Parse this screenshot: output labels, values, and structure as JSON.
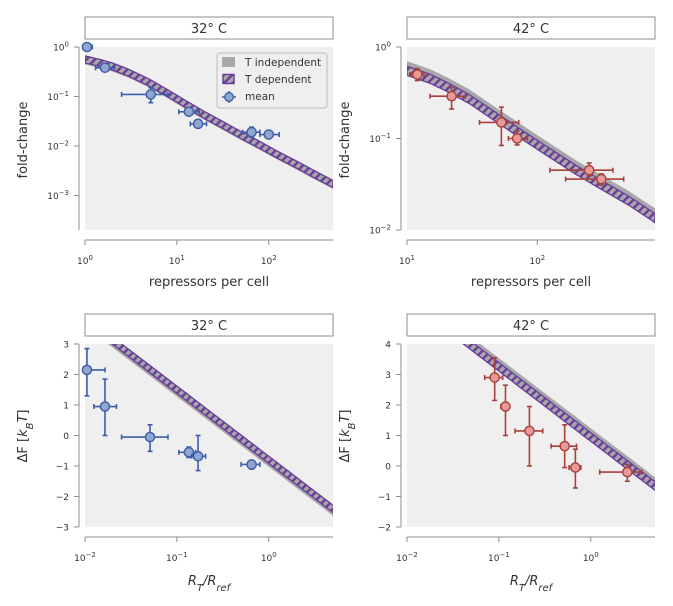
{
  "chart_data": [
    {
      "id": "fc32",
      "type": "scatter",
      "title": "32° C",
      "xlabel": "repressors per cell",
      "ylabel": "fold-change",
      "xscale": "log",
      "yscale": "log",
      "xlim": [
        1,
        500
      ],
      "ylim": [
        0.0002,
        1
      ],
      "xticks": [
        {
          "v": 1,
          "base": "10",
          "exp": "0"
        },
        {
          "v": 10,
          "base": "10",
          "exp": "1"
        },
        {
          "v": 100,
          "base": "10",
          "exp": "2"
        }
      ],
      "yticks": [
        {
          "v": 1,
          "base": "10",
          "exp": "0"
        },
        {
          "v": 0.1,
          "base": "10",
          "exp": "−1"
        },
        {
          "v": 0.01,
          "base": "10",
          "exp": "−2"
        },
        {
          "v": 0.001,
          "base": "10",
          "exp": "−3"
        }
      ],
      "grid": false,
      "legend": {
        "placement": "top-right",
        "entries": [
          "T independent",
          "T dependent",
          "mean"
        ]
      },
      "marker_color": "#8fa6d1",
      "marker_edge": "#3c5ea8",
      "band": {
        "name": "T independent / T dependent",
        "x": [
          1,
          1.5,
          2,
          3,
          5,
          8,
          12,
          20,
          30,
          50,
          80,
          120,
          200,
          300,
          500
        ],
        "y_center": [
          0.56,
          0.47,
          0.4,
          0.3,
          0.19,
          0.115,
          0.073,
          0.042,
          0.028,
          0.0165,
          0.0104,
          0.0069,
          0.0042,
          0.0028,
          0.0017
        ],
        "rel_half_width": 0.18
      },
      "series": [
        {
          "name": "mean",
          "points": [
            {
              "x": 1.05,
              "y": 1.0,
              "xerr": [
                0.95,
                1.2
              ],
              "yerr": [
                1.0,
                1.0
              ]
            },
            {
              "x": 1.65,
              "y": 0.38,
              "xerr": [
                1.3,
                2.1
              ],
              "yerr": [
                0.34,
                0.42
              ]
            },
            {
              "x": 5.2,
              "y": 0.11,
              "xerr": [
                2.5,
                8.0
              ],
              "yerr": [
                0.075,
                0.15
              ]
            },
            {
              "x": 13.5,
              "y": 0.049,
              "xerr": [
                10.5,
                17.5
              ],
              "yerr": [
                0.043,
                0.056
              ]
            },
            {
              "x": 17,
              "y": 0.028,
              "xerr": [
                14,
                21
              ],
              "yerr": [
                0.025,
                0.032
              ]
            },
            {
              "x": 65,
              "y": 0.019,
              "xerr": [
                52,
                80
              ],
              "yerr": [
                0.015,
                0.024
              ]
            },
            {
              "x": 100,
              "y": 0.017,
              "xerr": [
                80,
                130
              ],
              "yerr": [
                0.015,
                0.02
              ]
            }
          ]
        }
      ]
    },
    {
      "id": "fc42",
      "type": "scatter",
      "title": "42° C",
      "xlabel": "repressors per cell",
      "ylabel": "fold-change",
      "xscale": "log",
      "yscale": "log",
      "xlim": [
        10,
        800
      ],
      "ylim": [
        0.01,
        1
      ],
      "xticks": [
        {
          "v": 10,
          "base": "10",
          "exp": "1"
        },
        {
          "v": 100,
          "base": "10",
          "exp": "2"
        }
      ],
      "yticks": [
        {
          "v": 1,
          "base": "10",
          "exp": "0"
        },
        {
          "v": 0.1,
          "base": "10",
          "exp": "−1"
        },
        {
          "v": 0.01,
          "base": "10",
          "exp": "−2"
        }
      ],
      "grid": false,
      "marker_color": "#e89a98",
      "marker_edge": "#a8403a",
      "band": {
        "name": "T independent / T dependent",
        "x": [
          10,
          15,
          20,
          30,
          50,
          80,
          120,
          200,
          300,
          500,
          800
        ],
        "y_center": [
          0.55,
          0.45,
          0.37,
          0.27,
          0.165,
          0.105,
          0.072,
          0.045,
          0.032,
          0.021,
          0.0135
        ],
        "rel_half_width": 0.12,
        "tindep_offset": 1.12
      },
      "series": [
        {
          "name": "mean",
          "points": [
            {
              "x": 12,
              "y": 0.5,
              "xerr": [
                10.5,
                13.5
              ],
              "yerr": [
                0.43,
                0.58
              ]
            },
            {
              "x": 22,
              "y": 0.29,
              "xerr": [
                15,
                28
              ],
              "yerr": [
                0.21,
                0.36
              ]
            },
            {
              "x": 53,
              "y": 0.15,
              "xerr": [
                36,
                72
              ],
              "yerr": [
                0.084,
                0.22
              ]
            },
            {
              "x": 70,
              "y": 0.1,
              "xerr": [
                60,
                84
              ],
              "yerr": [
                0.085,
                0.12
              ]
            },
            {
              "x": 250,
              "y": 0.045,
              "xerr": [
                125,
                380
              ],
              "yerr": [
                0.039,
                0.054
              ]
            },
            {
              "x": 310,
              "y": 0.036,
              "xerr": [
                165,
                460
              ],
              "yerr": [
                0.031,
                0.041
              ]
            }
          ]
        }
      ]
    },
    {
      "id": "df32",
      "type": "scatter",
      "title": "32° C",
      "xlabel": "R_T/R_ref",
      "ylabel": "ΔF [k_B T]",
      "xscale": "log",
      "yscale": "linear",
      "xlim": [
        0.01,
        5
      ],
      "ylim": [
        -3,
        3
      ],
      "xticks": [
        {
          "v": 0.01,
          "base": "10",
          "exp": "−2"
        },
        {
          "v": 0.1,
          "base": "10",
          "exp": "−1"
        },
        {
          "v": 1,
          "base": "10",
          "exp": "0"
        }
      ],
      "yticks": [
        {
          "v": 3,
          "label": "3"
        },
        {
          "v": 2,
          "label": "2"
        },
        {
          "v": 1,
          "label": "1"
        },
        {
          "v": 0,
          "label": "0"
        },
        {
          "v": -1,
          "label": "−1"
        },
        {
          "v": -2,
          "label": "−2"
        },
        {
          "v": -3,
          "label": "−3"
        }
      ],
      "grid": false,
      "marker_color": "#8fa6d1",
      "marker_edge": "#3c5ea8",
      "band": {
        "name": "T independent / T dependent",
        "line": {
          "x0": 0.01,
          "y0": 3.8,
          "slope_per_decade": -2.3
        },
        "half_width": 0.12,
        "tindep_offset": -0.08
      },
      "series": [
        {
          "name": "mean",
          "points": [
            {
              "x": 0.0105,
              "y": 2.15,
              "xerr": [
                0.0095,
                0.0165
              ],
              "yerr": [
                1.3,
                2.85
              ]
            },
            {
              "x": 0.0165,
              "y": 0.95,
              "xerr": [
                0.0125,
                0.022
              ],
              "yerr": [
                0.0,
                1.85
              ]
            },
            {
              "x": 0.051,
              "y": -0.05,
              "xerr": [
                0.025,
                0.08
              ],
              "yerr": [
                -0.52,
                0.35
              ]
            },
            {
              "x": 0.135,
              "y": -0.55,
              "xerr": [
                0.105,
                0.16
              ],
              "yerr": [
                -0.72,
                -0.38
              ]
            },
            {
              "x": 0.17,
              "y": -0.68,
              "xerr": [
                0.145,
                0.205
              ],
              "yerr": [
                -1.15,
                0.0
              ]
            },
            {
              "x": 0.65,
              "y": -0.95,
              "xerr": [
                0.5,
                0.8
              ],
              "yerr": [
                -1.1,
                -0.82
              ]
            }
          ]
        }
      ]
    },
    {
      "id": "df42",
      "type": "scatter",
      "title": "42° C",
      "xlabel": "R_T/R_ref",
      "ylabel": "ΔF [k_B T]",
      "xscale": "log",
      "yscale": "linear",
      "xlim": [
        0.01,
        5
      ],
      "ylim": [
        -2,
        4
      ],
      "xticks": [
        {
          "v": 0.01,
          "base": "10",
          "exp": "−2"
        },
        {
          "v": 0.1,
          "base": "10",
          "exp": "−1"
        },
        {
          "v": 1,
          "base": "10",
          "exp": "0"
        }
      ],
      "yticks": [
        {
          "v": 4,
          "label": "4"
        },
        {
          "v": 3,
          "label": "3"
        },
        {
          "v": 2,
          "label": "2"
        },
        {
          "v": 1,
          "label": "1"
        },
        {
          "v": 0,
          "label": "0"
        },
        {
          "v": -1,
          "label": "−1"
        },
        {
          "v": -2,
          "label": "−2"
        }
      ],
      "grid": false,
      "marker_color": "#e89a98",
      "marker_edge": "#a8403a",
      "band": {
        "name": "T independent / T dependent",
        "line": {
          "x0": 0.01,
          "y0": 5.55,
          "slope_per_decade": -2.3
        },
        "half_width": 0.14,
        "tindep_offset": 0.12
      },
      "series": [
        {
          "name": "mean",
          "points": [
            {
              "x": 0.09,
              "y": 2.9,
              "xerr": [
                0.07,
                0.11
              ],
              "yerr": [
                2.15,
                3.55
              ]
            },
            {
              "x": 0.118,
              "y": 1.95,
              "xerr": [
                0.105,
                0.13
              ],
              "yerr": [
                1.0,
                2.65
              ]
            },
            {
              "x": 0.215,
              "y": 1.15,
              "xerr": [
                0.15,
                0.3
              ],
              "yerr": [
                0.0,
                1.95
              ]
            },
            {
              "x": 0.52,
              "y": 0.65,
              "xerr": [
                0.37,
                0.7
              ],
              "yerr": [
                -0.05,
                1.35
              ]
            },
            {
              "x": 0.68,
              "y": -0.05,
              "xerr": [
                0.58,
                0.78
              ],
              "yerr": [
                -0.72,
                0.55
              ]
            },
            {
              "x": 2.5,
              "y": -0.2,
              "xerr": [
                1.25,
                3.6
              ],
              "yerr": [
                -0.5,
                0.05
              ]
            }
          ]
        }
      ]
    }
  ]
}
